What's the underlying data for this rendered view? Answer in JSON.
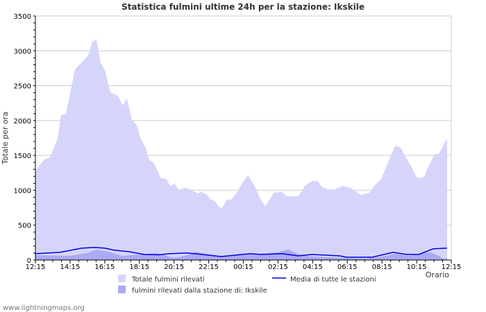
{
  "chart_data": {
    "type": "area",
    "title": "Statistica fulmini ultime 24h per la stazione: Ikskile",
    "xlabel": "Orario",
    "ylabel": "Totale per ora",
    "ylim": [
      0,
      3500
    ],
    "yticks": [
      0,
      500,
      1000,
      1500,
      2000,
      2500,
      3000,
      3500
    ],
    "xlim_hours": [
      0,
      24
    ],
    "xtick_labels": [
      "12:15",
      "14:15",
      "16:15",
      "18:15",
      "20:15",
      "22:15",
      "00:15",
      "02:15",
      "04:15",
      "06:15",
      "08:15",
      "10:15",
      "12:15"
    ],
    "grid": true,
    "legend_position": "bottom",
    "x_unit": "hours since 12:15",
    "series": [
      {
        "name": "Totale fulmini rilevati",
        "kind": "area",
        "color": "#d5d5fb",
        "x": [
          0,
          0.48,
          0.84,
          1.28,
          1.48,
          1.76,
          2.04,
          2.28,
          3.04,
          3.28,
          3.52,
          3.76,
          4.04,
          4.32,
          4.76,
          5.04,
          5.28,
          5.56,
          5.84,
          6.08,
          6.36,
          6.56,
          6.84,
          7.24,
          7.56,
          7.76,
          8.04,
          8.28,
          8.64,
          8.96,
          9.36,
          9.56,
          9.88,
          10.08,
          10.36,
          10.56,
          10.76,
          11.04,
          11.28,
          11.56,
          11.96,
          12.28,
          12.64,
          13.04,
          13.28,
          13.76,
          14.24,
          14.48,
          15.16,
          15.56,
          15.96,
          16.28,
          16.56,
          16.88,
          17.28,
          17.76,
          18.28,
          18.76,
          19.28,
          19.56,
          19.96,
          20.36,
          20.76,
          21.08,
          21.68,
          22.04,
          22.44,
          22.68,
          23.04,
          23.28,
          23.76
        ],
        "values": [
          1275,
          1434,
          1474,
          1740,
          2080,
          2090,
          2435,
          2733,
          2932,
          3131,
          3164,
          2833,
          2703,
          2405,
          2356,
          2217,
          2316,
          2018,
          1938,
          1740,
          1610,
          1441,
          1392,
          1173,
          1163,
          1064,
          1094,
          1004,
          1034,
          1014,
          954,
          974,
          944,
          875,
          845,
          775,
          736,
          865,
          865,
          944,
          1113,
          1213,
          1064,
          845,
          775,
          964,
          974,
          914,
          914,
          1064,
          1133,
          1133,
          1044,
          1014,
          1014,
          1064,
          1024,
          934,
          964,
          1064,
          1163,
          1411,
          1640,
          1610,
          1342,
          1173,
          1193,
          1342,
          1521,
          1521,
          1740
        ]
      },
      {
        "name": "fulmini rilevati dalla stazione di: Ikskile",
        "kind": "area",
        "color": "#aaaaf6",
        "x": [
          0,
          2,
          3,
          3.5,
          4.2,
          5,
          6,
          7,
          7.6,
          8,
          8.8,
          9.2,
          9.6,
          10.4,
          11,
          12,
          13,
          14,
          14.6,
          15.2,
          16,
          17,
          18,
          19,
          19.8,
          20.8,
          21.6,
          22.4,
          22.8,
          23.2,
          23.6,
          23.76
        ],
        "values": [
          70,
          60,
          100,
          150,
          120,
          60,
          80,
          100,
          60,
          30,
          70,
          120,
          100,
          60,
          60,
          80,
          90,
          110,
          150,
          80,
          50,
          40,
          30,
          20,
          40,
          90,
          60,
          100,
          110,
          70,
          10,
          30
        ]
      },
      {
        "name": "Media di tutte le stazioni",
        "kind": "line",
        "color": "#0000e0",
        "x": [
          0,
          1.44,
          2.68,
          3.4,
          4.0,
          4.56,
          5.36,
          6.28,
          7.12,
          7.76,
          8.72,
          9.64,
          10.72,
          11.52,
          12.4,
          13.04,
          14.24,
          15.16,
          15.96,
          17.56,
          17.96,
          19.44,
          20.64,
          21.44,
          22.12,
          22.96,
          23.76
        ],
        "values": [
          90,
          110,
          170,
          180,
          170,
          140,
          120,
          80,
          75,
          90,
          100,
          80,
          50,
          70,
          90,
          80,
          90,
          60,
          80,
          60,
          40,
          40,
          110,
          80,
          80,
          160,
          170
        ]
      }
    ]
  },
  "footer": "www.lightningmaps.org"
}
